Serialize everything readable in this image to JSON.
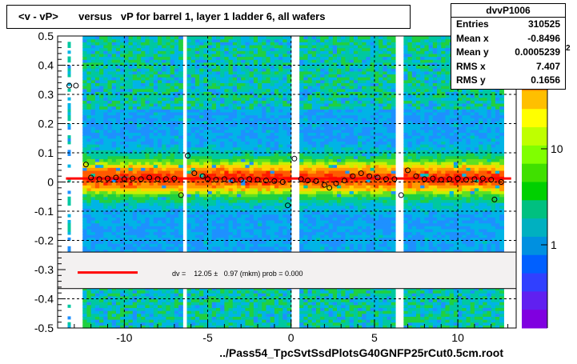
{
  "chart_data": {
    "type": "heatmap",
    "title": "<v - vP>       versus   vP for barrel 1, layer 1 ladder 6, all wafers",
    "xlabel": "../Pass54_TpcSvtSsdPlotsG40GNFP25rCut0.5cm.root",
    "xlim": [
      -14,
      13.5
    ],
    "ylim": [
      -0.5,
      0.5
    ],
    "x_ticks": [
      -10,
      -5,
      0,
      5,
      10
    ],
    "x_tick_labels": [
      "-10",
      "-5",
      "0",
      "5",
      "10"
    ],
    "y_ticks": [
      0.5,
      0.4,
      0.3,
      0.2,
      0.1,
      0,
      -0.1,
      -0.2,
      -0.3,
      -0.4,
      -0.5
    ],
    "y_tick_labels": [
      "0.5",
      "0.4",
      "0.3",
      "0.2",
      "0.1",
      "0",
      "-0.1",
      "-0.2",
      "-0.3",
      "-0.4",
      "-0.5"
    ],
    "z_scale": "log",
    "z_tick_labels": [
      "1",
      "10",
      "10"
    ],
    "z_exponent_label": "2",
    "grid": true,
    "stats": {
      "name": "dvvP1006",
      "rows": [
        {
          "label": "Entries",
          "value": "310525"
        },
        {
          "label": "Mean x",
          "value": "-0.8496"
        },
        {
          "label": "Mean y",
          "value": "0.0005239"
        },
        {
          "label": "RMS x",
          "value": "7.407"
        },
        {
          "label": "RMS y",
          "value": "0.1656"
        }
      ]
    },
    "fit": {
      "label": "dv =    12.05 ±   0.97 (mkm) prob = 0.000",
      "line_y": 0.01205,
      "line_x": [
        -13.5,
        13.2
      ],
      "color": "#ff0000"
    },
    "profile_points": [
      {
        "x": -13.3,
        "y": 0.33
      },
      {
        "x": -12.9,
        "y": 0.33
      },
      {
        "x": -12.3,
        "y": 0.06
      },
      {
        "x": -12.0,
        "y": 0.015
      },
      {
        "x": -11.5,
        "y": 0.01
      },
      {
        "x": -11.0,
        "y": 0.012
      },
      {
        "x": -10.5,
        "y": 0.015
      },
      {
        "x": -10.0,
        "y": 0.01
      },
      {
        "x": -9.5,
        "y": 0.012
      },
      {
        "x": -9.0,
        "y": 0.01
      },
      {
        "x": -8.5,
        "y": 0.015
      },
      {
        "x": -8.0,
        "y": 0.01
      },
      {
        "x": -7.5,
        "y": 0.01
      },
      {
        "x": -7.0,
        "y": 0.012
      },
      {
        "x": -6.6,
        "y": -0.045
      },
      {
        "x": -6.2,
        "y": 0.09
      },
      {
        "x": -5.8,
        "y": 0.03
      },
      {
        "x": -5.3,
        "y": 0.02
      },
      {
        "x": -5.0,
        "y": 0.01
      },
      {
        "x": -4.5,
        "y": 0.008
      },
      {
        "x": -4.0,
        "y": 0.01
      },
      {
        "x": -3.5,
        "y": 0.005
      },
      {
        "x": -3.0,
        "y": 0.008
      },
      {
        "x": -2.5,
        "y": 0.01
      },
      {
        "x": -2.0,
        "y": 0.008
      },
      {
        "x": -1.5,
        "y": 0.005
      },
      {
        "x": -1.0,
        "y": 0.003
      },
      {
        "x": -0.5,
        "y": 0.0
      },
      {
        "x": -0.2,
        "y": -0.08
      },
      {
        "x": 0.2,
        "y": 0.08
      },
      {
        "x": 0.6,
        "y": 0.01
      },
      {
        "x": 1.0,
        "y": 0.005
      },
      {
        "x": 1.5,
        "y": 0.003
      },
      {
        "x": 2.0,
        "y": -0.01
      },
      {
        "x": 2.3,
        "y": -0.02
      },
      {
        "x": 2.7,
        "y": -0.005
      },
      {
        "x": 3.2,
        "y": 0.005
      },
      {
        "x": 3.7,
        "y": 0.02
      },
      {
        "x": 4.2,
        "y": 0.03
      },
      {
        "x": 4.7,
        "y": 0.02
      },
      {
        "x": 5.2,
        "y": 0.015
      },
      {
        "x": 5.7,
        "y": 0.01
      },
      {
        "x": 6.2,
        "y": 0.01
      },
      {
        "x": 6.6,
        "y": -0.045
      },
      {
        "x": 7.0,
        "y": 0.04
      },
      {
        "x": 7.5,
        "y": 0.02
      },
      {
        "x": 8.0,
        "y": 0.01
      },
      {
        "x": 8.5,
        "y": 0.012
      },
      {
        "x": 9.0,
        "y": 0.008
      },
      {
        "x": 9.5,
        "y": 0.01
      },
      {
        "x": 10.0,
        "y": 0.012
      },
      {
        "x": 10.5,
        "y": 0.008
      },
      {
        "x": 11.0,
        "y": 0.01
      },
      {
        "x": 11.5,
        "y": 0.012
      },
      {
        "x": 12.0,
        "y": 0.008
      },
      {
        "x": 12.2,
        "y": -0.06
      },
      {
        "x": 12.6,
        "y": 0.0
      }
    ],
    "empty_x_gaps": [
      [
        -6.6,
        -6.2
      ],
      [
        -0.1,
        0.5
      ],
      [
        6.2,
        6.7
      ]
    ]
  }
}
